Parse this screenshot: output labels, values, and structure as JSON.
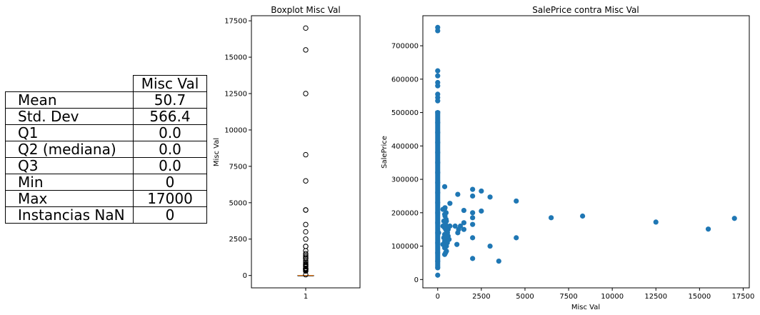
{
  "table": {
    "header": "Misc Val",
    "rows": [
      {
        "label": "Mean",
        "value": "50.7"
      },
      {
        "label": "Std. Dev",
        "value": "566.4"
      },
      {
        "label": "Q1",
        "value": "0.0"
      },
      {
        "label": "Q2 (mediana)",
        "value": "0.0"
      },
      {
        "label": "Q3",
        "value": "0.0"
      },
      {
        "label": "Min",
        "value": "0"
      },
      {
        "label": "Max",
        "value": "17000"
      },
      {
        "label": "Instancias NaN",
        "value": "0"
      }
    ]
  },
  "chart_data": [
    {
      "type": "box",
      "title": "Boxplot Misc Val",
      "xlabel": "",
      "ylabel": "Misc Val",
      "categories": [
        "1"
      ],
      "ylim": [
        -850,
        17850
      ],
      "yticks": [
        0,
        2500,
        5000,
        7500,
        10000,
        12500,
        15000,
        17500
      ],
      "ytick_labels": [
        "0",
        "2500",
        "5000",
        "7500",
        "10000",
        "12500",
        "15000",
        "17500"
      ],
      "median": 0,
      "q1": 0,
      "q3": 0,
      "whisker_low": 0,
      "whisker_high": 0,
      "outliers": [
        17000,
        15500,
        12500,
        8300,
        6500,
        4500,
        4500,
        3500,
        3000,
        2500,
        2000,
        2000,
        1700,
        1500,
        1400,
        1300,
        1200,
        1150,
        1000,
        900,
        800,
        750,
        700,
        650,
        600,
        500,
        480,
        460,
        450,
        420,
        400,
        350,
        300,
        54
      ],
      "colors": {
        "box": "#000000",
        "median": "#ff7f0e"
      }
    },
    {
      "type": "scatter",
      "title": "SalePrice contra Misc Val",
      "xlabel": "Misc Val",
      "ylabel": "SalePrice",
      "xlim": [
        -850,
        17850
      ],
      "ylim": [
        -25000,
        790000
      ],
      "xticks": [
        0,
        2500,
        5000,
        7500,
        10000,
        12500,
        15000,
        17500
      ],
      "xtick_labels": [
        "0",
        "2500",
        "5000",
        "7500",
        "10000",
        "12500",
        "15000",
        "17500"
      ],
      "yticks": [
        0,
        100000,
        200000,
        300000,
        400000,
        500000,
        600000,
        700000
      ],
      "ytick_labels": [
        "0",
        "100000",
        "200000",
        "300000",
        "400000",
        "500000",
        "600000",
        "700000"
      ],
      "color": "#1f77b4",
      "points": [
        [
          0,
          755000
        ],
        [
          0,
          745000
        ],
        [
          0,
          625000
        ],
        [
          0,
          610000
        ],
        [
          0,
          590000
        ],
        [
          0,
          580000
        ],
        [
          0,
          555000
        ],
        [
          0,
          545000
        ],
        [
          0,
          535000
        ],
        [
          0,
          500000
        ],
        [
          0,
          470000
        ],
        [
          0,
          440000
        ],
        [
          0,
          410000
        ],
        [
          0,
          380000
        ],
        [
          0,
          350000
        ],
        [
          0,
          320000
        ],
        [
          0,
          290000
        ],
        [
          0,
          260000
        ],
        [
          0,
          230000
        ],
        [
          0,
          200000
        ],
        [
          0,
          170000
        ],
        [
          0,
          140000
        ],
        [
          0,
          110000
        ],
        [
          0,
          80000
        ],
        [
          0,
          55000
        ],
        [
          0,
          35000
        ],
        [
          0,
          13000
        ],
        [
          17000,
          183000
        ],
        [
          15500,
          151000
        ],
        [
          12500,
          172000
        ],
        [
          8300,
          190000
        ],
        [
          6500,
          185000
        ],
        [
          4500,
          235000
        ],
        [
          4500,
          125000
        ],
        [
          3500,
          55000
        ],
        [
          3000,
          247000
        ],
        [
          3000,
          100000
        ],
        [
          2500,
          265000
        ],
        [
          2500,
          205000
        ],
        [
          2000,
          270000
        ],
        [
          2000,
          250000
        ],
        [
          2000,
          200000
        ],
        [
          2000,
          185000
        ],
        [
          2000,
          165000
        ],
        [
          2000,
          125000
        ],
        [
          2000,
          63000
        ],
        [
          1500,
          207000
        ],
        [
          1500,
          170000
        ],
        [
          1500,
          150000
        ],
        [
          1300,
          160000
        ],
        [
          1200,
          150000
        ],
        [
          1150,
          255000
        ],
        [
          1150,
          140000
        ],
        [
          1100,
          105000
        ],
        [
          1000,
          160000
        ],
        [
          700,
          228000
        ],
        [
          700,
          160000
        ],
        [
          650,
          120000
        ],
        [
          600,
          150000
        ],
        [
          600,
          130000
        ],
        [
          560,
          140000
        ],
        [
          550,
          110000
        ],
        [
          500,
          175000
        ],
        [
          500,
          160000
        ],
        [
          500,
          140000
        ],
        [
          500,
          120000
        ],
        [
          500,
          100000
        ],
        [
          500,
          85000
        ],
        [
          480,
          200000
        ],
        [
          480,
          180000
        ],
        [
          460,
          150000
        ],
        [
          460,
          130000
        ],
        [
          450,
          165000
        ],
        [
          450,
          110000
        ],
        [
          450,
          80000
        ],
        [
          420,
          215000
        ],
        [
          420,
          190000
        ],
        [
          400,
          278000
        ],
        [
          400,
          212000
        ],
        [
          400,
          195000
        ],
        [
          400,
          175000
        ],
        [
          400,
          155000
        ],
        [
          400,
          135000
        ],
        [
          400,
          115000
        ],
        [
          400,
          95000
        ],
        [
          400,
          75000
        ],
        [
          350,
          175000
        ],
        [
          350,
          125000
        ],
        [
          300,
          210000
        ],
        [
          300,
          160000
        ],
        [
          300,
          105000
        ],
        [
          54,
          140000
        ]
      ]
    }
  ]
}
